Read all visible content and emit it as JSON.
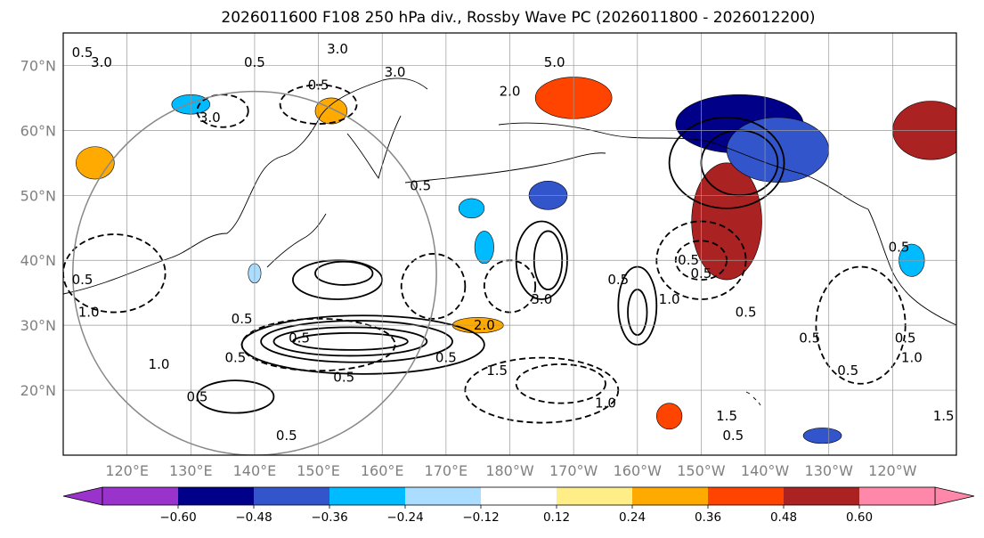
{
  "title": "2026011600 F108 250 hPa div., Rossby Wave PC (2026011800 - 2026012200)",
  "map": {
    "lon_range": [
      110,
      250
    ],
    "lat_range": [
      10,
      75
    ],
    "lat_ticks": [
      {
        "value": 70,
        "label": "70°N"
      },
      {
        "value": 60,
        "label": "60°N"
      },
      {
        "value": 50,
        "label": "50°N"
      },
      {
        "value": 40,
        "label": "40°N"
      },
      {
        "value": 30,
        "label": "30°N"
      },
      {
        "value": 20,
        "label": "20°N"
      }
    ],
    "lon_ticks": [
      {
        "value": 120,
        "label": "120°E"
      },
      {
        "value": 130,
        "label": "130°E"
      },
      {
        "value": 140,
        "label": "140°E"
      },
      {
        "value": 150,
        "label": "150°E"
      },
      {
        "value": 160,
        "label": "160°E"
      },
      {
        "value": 170,
        "label": "170°E"
      },
      {
        "value": 180,
        "label": "180°W"
      },
      {
        "value": 190,
        "label": "170°W"
      },
      {
        "value": 200,
        "label": "160°W"
      },
      {
        "value": 210,
        "label": "150°W"
      },
      {
        "value": 220,
        "label": "140°W"
      },
      {
        "value": 230,
        "label": "130°W"
      },
      {
        "value": 240,
        "label": "120°W"
      }
    ],
    "gridlines": true,
    "circle": {
      "center_lon": 140,
      "center_lat": 38,
      "radius_deg_lat": 28
    },
    "shading": [
      {
        "lon": 190,
        "lat": 65,
        "rx": 6,
        "ry": 3.2,
        "value": 0.45
      },
      {
        "lon": 214,
        "lat": 46,
        "rx": 5.5,
        "ry": 9,
        "value": 0.48
      },
      {
        "lon": 216,
        "lat": 61,
        "rx": 10,
        "ry": 4.5,
        "value": -0.55
      },
      {
        "lon": 222,
        "lat": 57,
        "rx": 8,
        "ry": 5,
        "value": -0.45
      },
      {
        "lon": 246,
        "lat": 60,
        "rx": 6,
        "ry": 4.5,
        "value": 0.5
      },
      {
        "lon": 175,
        "lat": 30,
        "rx": 4,
        "ry": 1.2,
        "value": 0.3
      },
      {
        "lon": 186,
        "lat": 50,
        "rx": 3,
        "ry": 2.2,
        "value": -0.38
      },
      {
        "lon": 205,
        "lat": 16,
        "rx": 2,
        "ry": 2,
        "value": 0.4
      },
      {
        "lon": 115,
        "lat": 55,
        "rx": 3,
        "ry": 2.5,
        "value": 0.3
      },
      {
        "lon": 130,
        "lat": 64,
        "rx": 3,
        "ry": 1.5,
        "value": -0.3
      },
      {
        "lon": 152,
        "lat": 63,
        "rx": 2.5,
        "ry": 2,
        "value": 0.35
      },
      {
        "lon": 229,
        "lat": 13,
        "rx": 3,
        "ry": 1.2,
        "value": -0.4
      },
      {
        "lon": 243,
        "lat": 40,
        "rx": 2,
        "ry": 2.5,
        "value": -0.3
      },
      {
        "lon": 174,
        "lat": 48,
        "rx": 2,
        "ry": 1.5,
        "value": -0.3
      },
      {
        "lon": 176,
        "lat": 42,
        "rx": 1.5,
        "ry": 2.5,
        "value": -0.25
      },
      {
        "lon": 140,
        "lat": 38,
        "rx": 1,
        "ry": 1.5,
        "value": -0.2
      }
    ],
    "contours": [
      {
        "lon": 155,
        "lat": 27.5,
        "rx": 9,
        "ry": 1.3,
        "value": 2.0
      },
      {
        "lon": 155,
        "lat": 27.5,
        "rx": 12,
        "ry": 2.2,
        "value": 1.5
      },
      {
        "lon": 156,
        "lat": 27.5,
        "rx": 15,
        "ry": 3.2,
        "value": 1.0
      },
      {
        "lon": 157,
        "lat": 27,
        "rx": 19,
        "ry": 4.5,
        "value": 0.5
      },
      {
        "lon": 153,
        "lat": 37,
        "rx": 7,
        "ry": 3,
        "value": 0.5
      },
      {
        "lon": 154,
        "lat": 38,
        "rx": 4.5,
        "ry": 1.8,
        "value": 1.0
      },
      {
        "lon": 186,
        "lat": 40,
        "rx": 2.2,
        "ry": 4.5,
        "value": 1.0
      },
      {
        "lon": 185,
        "lat": 40,
        "rx": 4,
        "ry": 6,
        "value": 0.5
      },
      {
        "lon": 200,
        "lat": 33,
        "rx": 3,
        "ry": 6,
        "value": 0.5
      },
      {
        "lon": 200,
        "lat": 32,
        "rx": 1.5,
        "ry": 3.5,
        "value": 1.0
      },
      {
        "lon": 214,
        "lat": 55,
        "rx": 9,
        "ry": 7,
        "value": 0.5
      },
      {
        "lon": 216,
        "lat": 55,
        "rx": 6,
        "ry": 5,
        "value": 1.0
      },
      {
        "lon": 137,
        "lat": 19,
        "rx": 6,
        "ry": 2.5,
        "value": 0.5
      },
      {
        "lon": 150,
        "lat": 27,
        "rx": 12,
        "ry": 4,
        "value": -0.5
      },
      {
        "lon": 168,
        "lat": 36,
        "rx": 5,
        "ry": 5,
        "value": -0.5
      },
      {
        "lon": 180,
        "lat": 36,
        "rx": 4,
        "ry": 4,
        "value": -1.0
      },
      {
        "lon": 210,
        "lat": 40,
        "rx": 7,
        "ry": 6,
        "value": -0.5
      },
      {
        "lon": 210,
        "lat": 40,
        "rx": 4,
        "ry": 3,
        "value": -1.0
      },
      {
        "lon": 185,
        "lat": 20,
        "rx": 12,
        "ry": 5,
        "value": -0.5
      },
      {
        "lon": 188,
        "lat": 21,
        "rx": 7,
        "ry": 3,
        "value": -1.5
      },
      {
        "lon": 150,
        "lat": 64,
        "rx": 6,
        "ry": 3,
        "value": -0.5
      },
      {
        "lon": 135,
        "lat": 63,
        "rx": 4,
        "ry": 2.5,
        "value": -0.5
      },
      {
        "lon": 118,
        "lat": 38,
        "rx": 8,
        "ry": 6,
        "value": -0.5
      },
      {
        "lon": 235,
        "lat": 30,
        "rx": 7,
        "ry": 9,
        "value": -0.5
      }
    ],
    "contour_labels": [
      {
        "lon": 113,
        "lat": 72,
        "text": "0.5"
      },
      {
        "lon": 116,
        "lat": 70.5,
        "text": "3.0"
      },
      {
        "lon": 153,
        "lat": 72.5,
        "text": "3.0"
      },
      {
        "lon": 140,
        "lat": 70.5,
        "text": "0.5"
      },
      {
        "lon": 133,
        "lat": 62,
        "text": "3.0"
      },
      {
        "lon": 150,
        "lat": 67,
        "text": "0.5"
      },
      {
        "lon": 162,
        "lat": 69,
        "text": "3.0"
      },
      {
        "lon": 187,
        "lat": 70.5,
        "text": "5.0"
      },
      {
        "lon": 180,
        "lat": 66,
        "text": "2.0"
      },
      {
        "lon": 166,
        "lat": 51.5,
        "text": "0.5"
      },
      {
        "lon": 185,
        "lat": 34,
        "text": "3.0"
      },
      {
        "lon": 197,
        "lat": 37,
        "text": "0.5"
      },
      {
        "lon": 205,
        "lat": 34,
        "text": "1.0"
      },
      {
        "lon": 210,
        "lat": 38,
        "text": "0.5"
      },
      {
        "lon": 113,
        "lat": 37,
        "text": "0.5"
      },
      {
        "lon": 114,
        "lat": 32,
        "text": "1.0"
      },
      {
        "lon": 138,
        "lat": 31,
        "text": "0.5"
      },
      {
        "lon": 147,
        "lat": 28,
        "text": "0.5"
      },
      {
        "lon": 125,
        "lat": 24,
        "text": "1.0"
      },
      {
        "lon": 137,
        "lat": 25,
        "text": "0.5"
      },
      {
        "lon": 154,
        "lat": 22,
        "text": "0.5"
      },
      {
        "lon": 145,
        "lat": 13,
        "text": "0.5"
      },
      {
        "lon": 131,
        "lat": 19,
        "text": "0.5"
      },
      {
        "lon": 170,
        "lat": 25,
        "text": "0.5"
      },
      {
        "lon": 176,
        "lat": 30,
        "text": "2.0"
      },
      {
        "lon": 178,
        "lat": 23,
        "text": "1.5"
      },
      {
        "lon": 195,
        "lat": 18,
        "text": "1.0"
      },
      {
        "lon": 214,
        "lat": 16,
        "text": "1.5"
      },
      {
        "lon": 215,
        "lat": 13,
        "text": "0.5"
      },
      {
        "lon": 242,
        "lat": 28,
        "text": "0.5"
      },
      {
        "lon": 243,
        "lat": 25,
        "text": "1.0"
      },
      {
        "lon": 248,
        "lat": 16,
        "text": "1.5"
      },
      {
        "lon": 227,
        "lat": 28,
        "text": "0.5"
      },
      {
        "lon": 233,
        "lat": 23,
        "text": "0.5"
      },
      {
        "lon": 217,
        "lat": 32,
        "text": "0.5"
      },
      {
        "lon": 241,
        "lat": 42,
        "text": "0.5"
      },
      {
        "lon": 208,
        "lat": 40,
        "text": "0.5"
      }
    ]
  },
  "colorbar": {
    "levels": [
      -0.72,
      -0.6,
      -0.48,
      -0.36,
      -0.24,
      -0.12,
      0.12,
      0.24,
      0.36,
      0.48,
      0.6,
      0.72
    ],
    "colors": [
      "#9933cc",
      "#000088",
      "#3355cc",
      "#00bbff",
      "#aaddff",
      "#ffffff",
      "#ffee88",
      "#ffaa00",
      "#ff4400",
      "#aa2222",
      "#ff88aa"
    ],
    "under_color": "#9933cc",
    "over_color": "#ff88aa",
    "tick_labels": [
      "−0.60",
      "−0.48",
      "−0.36",
      "−0.24",
      "−0.12",
      "0.12",
      "0.24",
      "0.36",
      "0.48",
      "0.60"
    ]
  }
}
